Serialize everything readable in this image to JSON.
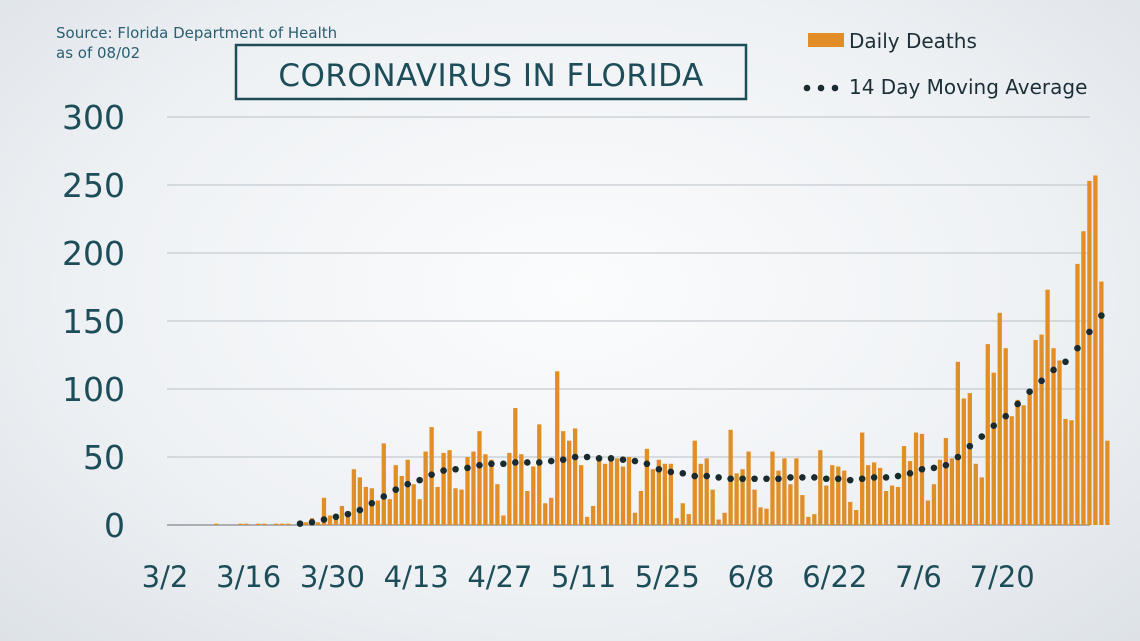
{
  "source_line1": "Source: Florida Department of Health",
  "source_line2": "as of 08/02",
  "title": "CORONAVIRUS IN FLORIDA",
  "colors": {
    "bars": "#e08e25",
    "avg": "#1a2b30",
    "text": "#1d4d59"
  },
  "chart_data": {
    "type": "bar",
    "title": "CORONAVIRUS IN FLORIDA",
    "xlabel": "",
    "ylabel": "",
    "ylim": [
      0,
      300
    ],
    "yticks": [
      "0",
      "50",
      "100",
      "150",
      "200",
      "250",
      "300"
    ],
    "xtick_labels": [
      "3/2",
      "3/16",
      "3/30",
      "4/13",
      "4/27",
      "5/11",
      "5/25",
      "6/8",
      "6/22",
      "7/6",
      "7/20"
    ],
    "start_date": "3/1",
    "legend_position": "top-right",
    "grid": true,
    "series": [
      {
        "name": "Daily Deaths",
        "type": "bar",
        "values": [
          0,
          0,
          0,
          0,
          0,
          0,
          0,
          0,
          1,
          0,
          0,
          0,
          1,
          1,
          0,
          1,
          1,
          0,
          1,
          1,
          1,
          0,
          3,
          2,
          5,
          2,
          20,
          7,
          8,
          14,
          10,
          41,
          35,
          28,
          27,
          18,
          60,
          19,
          44,
          36,
          48,
          30,
          19,
          54,
          72,
          28,
          53,
          55,
          27,
          26,
          50,
          54,
          69,
          52,
          48,
          30,
          7,
          53,
          86,
          52,
          25,
          43,
          74,
          16,
          20,
          113,
          69,
          62,
          71,
          44,
          6,
          14,
          48,
          45,
          50,
          49,
          43,
          50,
          9,
          25,
          56,
          41,
          48,
          45,
          45,
          5,
          16,
          8,
          62,
          45,
          49,
          26,
          4,
          9,
          70,
          38,
          41,
          54,
          26,
          13,
          12,
          54,
          40,
          49,
          30,
          49,
          22,
          6,
          8,
          55,
          29,
          44,
          43,
          40,
          17,
          11,
          68,
          44,
          46,
          42,
          25,
          29,
          28,
          58,
          47,
          68,
          67,
          18,
          30,
          48,
          64,
          49,
          120,
          93,
          97,
          45,
          35,
          133,
          112,
          156,
          130,
          80,
          92,
          88,
          96,
          136,
          140,
          173,
          130,
          121,
          78,
          77,
          192,
          216,
          253,
          257,
          179,
          62
        ]
      },
      {
        "name": "14 Day Moving Average",
        "type": "line",
        "values": [
          0,
          0,
          0,
          0,
          0,
          0,
          0,
          0,
          0,
          0,
          0,
          0,
          0,
          0,
          0,
          0,
          0,
          0,
          0,
          0,
          1,
          1,
          1,
          2,
          2,
          3,
          4,
          5,
          6,
          7,
          8,
          10,
          11,
          14,
          16,
          18,
          21,
          23,
          26,
          28,
          30,
          32,
          33,
          34,
          37,
          39,
          40,
          40,
          41,
          41,
          42,
          43,
          44,
          44,
          45,
          45,
          45,
          45,
          46,
          46,
          46,
          46,
          46,
          47,
          47,
          48,
          48,
          49,
          50,
          51,
          50,
          49,
          49,
          49,
          49,
          49,
          48,
          48,
          47,
          47,
          45,
          43,
          41,
          40,
          39,
          38,
          38,
          37,
          36,
          36,
          36,
          36,
          35,
          34,
          34,
          34,
          34,
          34,
          34,
          34,
          34,
          34,
          34,
          35,
          35,
          35,
          35,
          35,
          35,
          35,
          34,
          34,
          34,
          33,
          33,
          33,
          34,
          34,
          35,
          35,
          35,
          35,
          36,
          37,
          38,
          39,
          41,
          42,
          42,
          43,
          44,
          46,
          50,
          54,
          58,
          61,
          65,
          69,
          73,
          78,
          80,
          85,
          89,
          94,
          98,
          102,
          106,
          110,
          114,
          116,
          120,
          124,
          130,
          136,
          142,
          150,
          154,
          153
        ]
      }
    ]
  }
}
